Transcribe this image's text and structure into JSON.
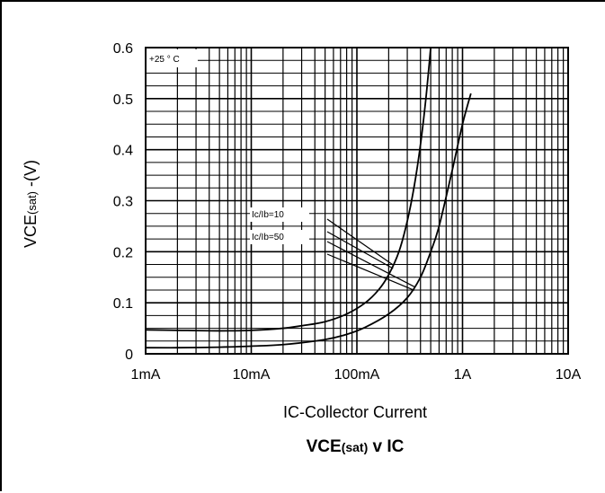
{
  "chart_data": {
    "type": "line",
    "title": "VCE(sat) v IC",
    "title_parts": {
      "main": "VCE",
      "sub": "(sat)",
      "rest": " v IC"
    },
    "xlabel": "IC-Collector Current",
    "ylabel_parts": {
      "main": "VCE",
      "sub": "(sat)",
      "rest": " -(V)"
    },
    "x_scale": "log",
    "xlim": [
      0.001,
      10
    ],
    "ylim": [
      0,
      0.6
    ],
    "x_ticks": [
      {
        "value": 0.001,
        "label": "1mA"
      },
      {
        "value": 0.01,
        "label": "10mA"
      },
      {
        "value": 0.1,
        "label": "100mA"
      },
      {
        "value": 1,
        "label": "1A"
      },
      {
        "value": 10,
        "label": "10A"
      }
    ],
    "y_ticks": [
      {
        "value": 0,
        "label": "0"
      },
      {
        "value": 0.1,
        "label": "0.1"
      },
      {
        "value": 0.2,
        "label": "0.2"
      },
      {
        "value": 0.3,
        "label": "0.3"
      },
      {
        "value": 0.4,
        "label": "0.4"
      },
      {
        "value": 0.5,
        "label": "0.5"
      },
      {
        "value": 0.6,
        "label": "0.6"
      }
    ],
    "grid": true,
    "condition_label": "+25 ° C",
    "series": [
      {
        "name": "Ic/Ib=10",
        "x": [
          0.001,
          0.002,
          0.005,
          0.01,
          0.02,
          0.03,
          0.05,
          0.08,
          0.12,
          0.16,
          0.2,
          0.25,
          0.3,
          0.35,
          0.4,
          0.45,
          0.5
        ],
        "y": [
          0.047,
          0.046,
          0.045,
          0.046,
          0.05,
          0.055,
          0.063,
          0.078,
          0.1,
          0.125,
          0.155,
          0.2,
          0.26,
          0.33,
          0.41,
          0.5,
          0.6
        ]
      },
      {
        "name": "Ic/Ib=50",
        "x": [
          0.001,
          0.002,
          0.005,
          0.01,
          0.02,
          0.05,
          0.08,
          0.12,
          0.2,
          0.3,
          0.4,
          0.5,
          0.6,
          0.8,
          1.0,
          1.2
        ],
        "y": [
          0.012,
          0.012,
          0.013,
          0.015,
          0.018,
          0.028,
          0.038,
          0.052,
          0.078,
          0.11,
          0.15,
          0.2,
          0.25,
          0.36,
          0.45,
          0.51
        ]
      }
    ],
    "annotations": [
      {
        "text": "Ic/Ib=10",
        "series": 0,
        "pointer_to_x": 0.22
      },
      {
        "text": "Ic/Ib=50",
        "series": 1,
        "pointer_to_x": 0.35
      }
    ]
  }
}
